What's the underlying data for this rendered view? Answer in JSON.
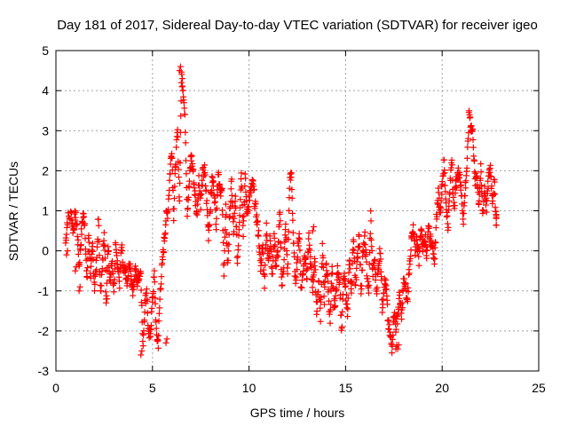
{
  "chart_data": {
    "type": "scatter",
    "title": "Day 181 of 2017, Sidereal Day-to-day VTEC variation (SDTVAR) for receiver igeo",
    "xlabel": "GPS time / hours",
    "ylabel": "SDTVAR / TECUs",
    "xlim": [
      0,
      25
    ],
    "ylim": [
      -3,
      5
    ],
    "xticks": [
      "0",
      "5",
      "10",
      "15",
      "20",
      "25"
    ],
    "yticks": [
      "5",
      "4",
      "3",
      "2",
      "1",
      "0",
      "-1",
      "-2",
      "-3"
    ],
    "xtick_values": [
      0,
      5,
      10,
      15,
      20,
      25
    ],
    "ytick_values": [
      5,
      4,
      3,
      2,
      1,
      0,
      -1,
      -2,
      -3
    ],
    "grid": true,
    "marker": "+",
    "color": "#ff0000",
    "series": [
      {
        "name": "SDTVAR",
        "x": [
          0.5,
          0.6,
          0.8,
          0.9,
          1.0,
          1.1,
          1.2,
          1.3,
          1.4,
          1.5,
          1.6,
          1.7,
          1.8,
          1.9,
          2.0,
          2.1,
          2.2,
          2.3,
          2.4,
          2.5,
          2.6,
          2.7,
          2.8,
          2.9,
          3.0,
          3.1,
          3.2,
          3.3,
          3.4,
          3.5,
          3.6,
          3.7,
          3.8,
          3.9,
          4.0,
          4.1,
          4.2,
          4.3,
          4.4,
          4.5,
          4.6,
          4.7,
          4.8,
          4.9,
          5.0,
          5.1,
          5.2,
          5.3,
          5.4,
          5.5,
          5.6,
          5.7,
          5.8,
          5.9,
          6.0,
          6.1,
          6.2,
          6.3,
          6.4,
          6.5,
          6.6,
          6.7,
          6.8,
          6.9,
          7.0,
          7.1,
          7.2,
          7.3,
          7.4,
          7.5,
          7.6,
          7.7,
          7.8,
          7.9,
          8.0,
          8.1,
          8.2,
          8.3,
          8.4,
          8.5,
          8.6,
          8.7,
          8.8,
          8.9,
          9.0,
          9.1,
          9.2,
          9.3,
          9.4,
          9.5,
          9.6,
          9.7,
          9.8,
          9.9,
          10.0,
          10.1,
          10.2,
          10.3,
          10.4,
          10.5,
          10.6,
          10.7,
          10.8,
          10.9,
          11.0,
          11.1,
          11.2,
          11.3,
          11.4,
          11.5,
          11.6,
          11.7,
          11.8,
          11.9,
          12.0,
          12.1,
          12.2,
          12.3,
          12.4,
          12.5,
          12.6,
          12.7,
          12.8,
          12.9,
          13.0,
          13.1,
          13.2,
          13.3,
          13.4,
          13.5,
          13.6,
          13.7,
          13.8,
          13.9,
          14.0,
          14.1,
          14.2,
          14.3,
          14.4,
          14.5,
          14.6,
          14.7,
          14.8,
          14.9,
          15.0,
          15.1,
          15.2,
          15.3,
          15.4,
          15.5,
          15.6,
          15.7,
          15.8,
          15.9,
          16.0,
          16.1,
          16.2,
          16.3,
          16.4,
          16.5,
          16.6,
          16.7,
          16.8,
          16.9,
          17.0,
          17.1,
          17.2,
          17.3,
          17.4,
          17.5,
          17.6,
          17.7,
          17.8,
          17.9,
          18.0,
          18.1,
          18.2,
          18.3,
          18.4,
          18.5,
          18.6,
          18.7,
          18.8,
          18.9,
          19.0,
          19.1,
          19.2,
          19.3,
          19.4,
          19.5,
          19.6,
          19.7,
          19.8,
          19.9,
          20.0,
          20.1,
          20.2,
          20.3,
          20.4,
          20.5,
          20.6,
          20.7,
          20.8,
          20.9,
          21.0,
          21.1,
          21.2,
          21.3,
          21.4,
          21.5,
          21.6,
          21.7,
          21.8,
          21.9,
          22.0,
          22.1,
          22.2,
          22.3,
          22.4,
          22.5,
          22.6,
          22.7,
          22.8
        ],
        "y": [
          0.2,
          0.8,
          0.9,
          0.5,
          0.9,
          0.6,
          -0.4,
          0.3,
          0.9,
          0.7,
          -0.8,
          0.4,
          -0.6,
          0.1,
          -0.9,
          -0.3,
          0.8,
          -1.0,
          -0.5,
          0.6,
          -1.2,
          0.2,
          -0.7,
          -0.2,
          -1.1,
          0.3,
          -0.4,
          -0.8,
          0.1,
          -0.6,
          -0.5,
          -0.9,
          -0.3,
          -0.7,
          -1.0,
          -0.4,
          -0.8,
          -0.6,
          -0.5,
          -2.4,
          -1.4,
          -0.9,
          -2.2,
          -2.0,
          -1.2,
          -0.6,
          -2.1,
          -2.3,
          -1.0,
          -0.4,
          0.2,
          0.8,
          1.0,
          1.9,
          2.6,
          0.9,
          2.2,
          3.0,
          1.2,
          4.4,
          4.0,
          3.1,
          1.0,
          1.6,
          2.4,
          2.0,
          1.4,
          0.9,
          1.8,
          1.2,
          1.9,
          2.0,
          1.3,
          0.4,
          1.2,
          1.8,
          1.5,
          0.7,
          2.0,
          1.6,
          1.4,
          -0.5,
          1.0,
          -0.4,
          0.9,
          1.7,
          0.4,
          1.3,
          -0.3,
          0.8,
          2.0,
          0.5,
          1.8,
          0.9,
          1.3,
          1.5,
          1.7,
          1.2,
          0.8,
          0.4,
          -0.5,
          0.2,
          -0.8,
          0.6,
          -0.2,
          0.3,
          -0.6,
          0.4,
          -0.4,
          0.0,
          0.9,
          -0.9,
          -0.3,
          0.6,
          -0.6,
          1.7,
          1.9,
          0.2,
          -0.8,
          -0.2,
          0.5,
          -1.0,
          -0.5,
          0.0,
          -0.7,
          0.3,
          -0.4,
          -0.9,
          -0.2,
          -1.5,
          -0.8,
          -1.6,
          0.1,
          -1.2,
          -0.3,
          -0.9,
          -1.8,
          -0.5,
          -1.4,
          -1.1,
          -0.4,
          -0.8,
          -2.1,
          -0.6,
          -1.0,
          -1.5,
          -0.2,
          -1.2,
          0.4,
          -0.8,
          -0.3,
          0.5,
          -1.0,
          -0.1,
          0.3,
          -0.5,
          -1.1,
          0.9,
          -0.6,
          -0.2,
          -1.0,
          -0.4,
          0.1,
          -1.4,
          -0.8,
          -0.9,
          -1.8,
          -2.1,
          -2.4,
          -1.5,
          -1.9,
          -1.6,
          -1.1,
          -1.7,
          -0.8,
          -0.9,
          -1.3,
          -0.4,
          0.2,
          0.5,
          0.0,
          0.3,
          -0.2,
          0.6,
          0.1,
          0.4,
          -0.1,
          0.7,
          0.2,
          0.3,
          -0.5,
          0.8,
          1.4,
          1.0,
          1.7,
          2.2,
          1.2,
          0.6,
          1.5,
          2.4,
          1.0,
          1.6,
          1.9,
          2.0,
          1.4,
          0.8,
          1.6,
          2.2,
          3.5,
          3.1,
          2.9,
          1.7,
          1.9,
          1.2,
          2.0,
          0.9,
          1.6,
          1.1,
          1.8,
          2.1,
          1.3,
          1.7,
          0.8
        ],
        "extra_points_x": [
          0.55,
          1.0,
          1.2,
          2.6,
          4.4,
          5.7,
          6.4,
          6.5,
          13.3,
          17.6,
          17.7
        ],
        "extra_points_y": [
          -0.1,
          -0.5,
          -1.0,
          -1.3,
          -2.6,
          -2.3,
          4.5,
          4.2,
          0.5,
          -2.45,
          -2.45
        ]
      }
    ]
  }
}
